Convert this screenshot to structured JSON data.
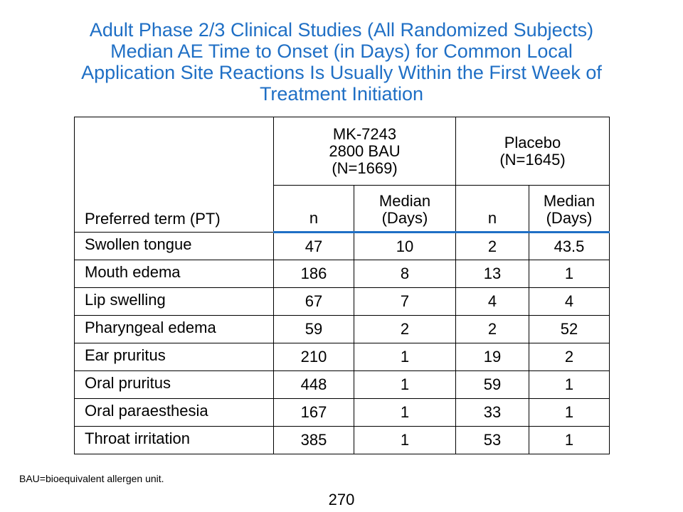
{
  "title": {
    "lines": [
      "Adult Phase 2/3 Clinical Studies (All Randomized Subjects)",
      "Median AE Time to Onset (in Days) for Common Local",
      "Application Site Reactions Is Usually Within the First Week of",
      "Treatment Initiation"
    ]
  },
  "table": {
    "header": {
      "preferred_term": "Preferred term (PT)",
      "group1": {
        "line1": "MK-7243",
        "line2": "2800 BAU",
        "line3": "(N=1669)"
      },
      "group2": {
        "line1": "Placebo",
        "line2": "(N=1645)"
      },
      "sub_n": "n",
      "sub_median_line1": "Median",
      "sub_median_line2": "(Days)"
    },
    "rows": [
      {
        "term": "Swollen tongue",
        "mk_n": "47",
        "mk_median": "10",
        "pl_n": "2",
        "pl_median": "43.5"
      },
      {
        "term": "Mouth edema",
        "mk_n": "186",
        "mk_median": "8",
        "pl_n": "13",
        "pl_median": "1"
      },
      {
        "term": "Lip swelling",
        "mk_n": "67",
        "mk_median": "7",
        "pl_n": "4",
        "pl_median": "4"
      },
      {
        "term": "Pharyngeal edema",
        "mk_n": "59",
        "mk_median": "2",
        "pl_n": "2",
        "pl_median": "52"
      },
      {
        "term": "Ear pruritus",
        "mk_n": "210",
        "mk_median": "1",
        "pl_n": "19",
        "pl_median": "2"
      },
      {
        "term": "Oral pruritus",
        "mk_n": "448",
        "mk_median": "1",
        "pl_n": "59",
        "pl_median": "1"
      },
      {
        "term": "Oral paraesthesia",
        "mk_n": "167",
        "mk_median": "1",
        "pl_n": "33",
        "pl_median": "1"
      },
      {
        "term": "Throat irritation",
        "mk_n": "385",
        "mk_median": "1",
        "pl_n": "53",
        "pl_median": "1"
      }
    ]
  },
  "footnote": "BAU=bioequivalent allergen unit.",
  "page_number": "270",
  "colors": {
    "title": "#1f6fc5",
    "header_rule": "#1f6fc5"
  }
}
